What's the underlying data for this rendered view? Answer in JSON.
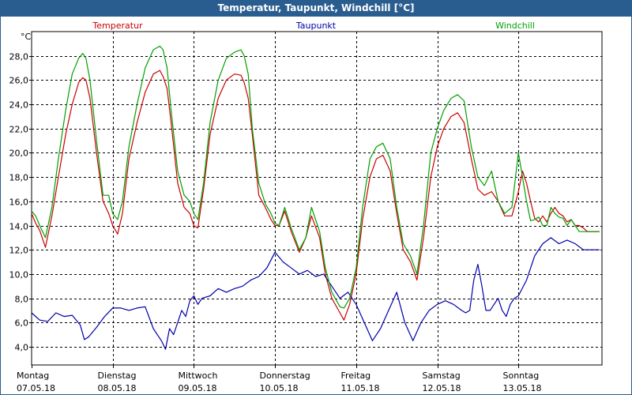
{
  "window": {
    "title": "Temperatur, Taupunkt, Windchill [°C]"
  },
  "chart_data": {
    "type": "line",
    "title": "Temperatur, Taupunkt, Windchill [°C]",
    "ylabel": "°C",
    "ylim": [
      2.5,
      30.0
    ],
    "yticks": [
      4,
      6,
      8,
      10,
      12,
      14,
      16,
      18,
      20,
      22,
      24,
      26,
      28
    ],
    "ytick_labels": [
      "4,0",
      "6,0",
      "8,0",
      "10,0",
      "12,0",
      "14,0",
      "16,0",
      "18,0",
      "20,0",
      "22,0",
      "24,0",
      "26,0",
      "28,0"
    ],
    "xlim": [
      0,
      7.03
    ],
    "grid": true,
    "days": [
      {
        "name": "Montag",
        "date": "07.05.18",
        "x": 0
      },
      {
        "name": "Dienstag",
        "date": "08.05.18",
        "x": 1
      },
      {
        "name": "Mittwoch",
        "date": "09.05.18",
        "x": 2
      },
      {
        "name": "Donnerstag",
        "date": "10.05.18",
        "x": 3
      },
      {
        "name": "Freitag",
        "date": "11.05.18",
        "x": 4
      },
      {
        "name": "Samstag",
        "date": "12.05.18",
        "x": 5
      },
      {
        "name": "Sonntag",
        "date": "13.05.18",
        "x": 6
      }
    ],
    "colors": {
      "temperatur": "#cc0000",
      "taupunkt": "#0000aa",
      "windchill": "#00a000",
      "grid": "#000000"
    },
    "series": [
      {
        "name": "Temperatur",
        "key": "temperatur",
        "x": [
          0.0,
          0.05,
          0.1,
          0.17,
          0.25,
          0.33,
          0.42,
          0.5,
          0.58,
          0.63,
          0.67,
          0.72,
          0.8,
          0.88,
          0.95,
          1.0,
          1.06,
          1.12,
          1.2,
          1.3,
          1.4,
          1.5,
          1.58,
          1.62,
          1.67,
          1.72,
          1.8,
          1.88,
          1.95,
          2.0,
          2.05,
          2.12,
          2.2,
          2.3,
          2.4,
          2.5,
          2.58,
          2.62,
          2.67,
          2.72,
          2.8,
          2.88,
          2.95,
          3.0,
          3.05,
          3.12,
          3.2,
          3.3,
          3.38,
          3.45,
          3.55,
          3.62,
          3.7,
          3.8,
          3.85,
          3.92,
          4.0,
          4.08,
          4.17,
          4.25,
          4.33,
          4.42,
          4.5,
          4.58,
          4.67,
          4.75,
          4.83,
          4.92,
          5.0,
          5.08,
          5.17,
          5.25,
          5.33,
          5.42,
          5.5,
          5.58,
          5.67,
          5.75,
          5.83,
          5.92,
          6.0,
          6.05,
          6.1,
          6.15,
          6.2,
          6.25,
          6.3,
          6.35,
          6.4,
          6.45,
          6.5,
          6.55,
          6.6,
          6.65,
          6.7,
          6.75,
          6.8,
          6.85,
          6.9,
          6.95,
          7.0
        ],
        "values": [
          15.0,
          14.2,
          13.6,
          12.2,
          14.8,
          18.0,
          21.5,
          24.0,
          25.8,
          26.2,
          26.0,
          24.5,
          20.0,
          16.0,
          15.0,
          14.0,
          13.3,
          15.0,
          19.5,
          22.5,
          25.0,
          26.5,
          26.8,
          26.3,
          25.3,
          22.5,
          17.5,
          15.5,
          15.0,
          14.0,
          13.8,
          17.0,
          21.5,
          24.5,
          26.0,
          26.5,
          26.4,
          25.8,
          24.5,
          21.5,
          16.5,
          15.5,
          14.5,
          14.0,
          14.0,
          15.2,
          13.5,
          11.8,
          13.0,
          14.8,
          13.0,
          10.0,
          8.0,
          6.8,
          6.2,
          7.5,
          10.0,
          14.5,
          18.0,
          19.5,
          19.8,
          18.5,
          15.0,
          12.0,
          11.0,
          9.5,
          13.0,
          18.0,
          20.5,
          22.0,
          23.0,
          23.3,
          22.5,
          19.5,
          17.0,
          16.5,
          16.8,
          16.0,
          14.8,
          14.8,
          16.8,
          18.5,
          17.5,
          16.0,
          14.6,
          14.3,
          14.8,
          14.3,
          15.0,
          15.5,
          15.0,
          14.8,
          14.3,
          14.5,
          14.0,
          14.0,
          13.8,
          13.5,
          13.5,
          13.5,
          13.5
        ]
      },
      {
        "name": "Taupunkt",
        "key": "taupunkt",
        "x": [
          0.0,
          0.1,
          0.2,
          0.3,
          0.4,
          0.5,
          0.6,
          0.65,
          0.7,
          0.8,
          0.9,
          1.0,
          1.1,
          1.2,
          1.3,
          1.4,
          1.5,
          1.6,
          1.65,
          1.7,
          1.75,
          1.8,
          1.85,
          1.9,
          1.95,
          2.0,
          2.05,
          2.1,
          2.2,
          2.3,
          2.4,
          2.5,
          2.6,
          2.7,
          2.8,
          2.9,
          3.0,
          3.1,
          3.2,
          3.3,
          3.4,
          3.5,
          3.6,
          3.7,
          3.8,
          3.9,
          4.0,
          4.1,
          4.2,
          4.3,
          4.4,
          4.5,
          4.6,
          4.7,
          4.8,
          4.9,
          5.0,
          5.1,
          5.2,
          5.3,
          5.35,
          5.4,
          5.45,
          5.5,
          5.55,
          5.6,
          5.65,
          5.7,
          5.75,
          5.8,
          5.85,
          5.9,
          5.95,
          6.0,
          6.1,
          6.2,
          6.3,
          6.4,
          6.5,
          6.6,
          6.7,
          6.8,
          6.9,
          7.0
        ],
        "values": [
          6.8,
          6.2,
          6.1,
          6.8,
          6.5,
          6.6,
          5.8,
          4.6,
          4.8,
          5.6,
          6.5,
          7.2,
          7.2,
          7.0,
          7.2,
          7.3,
          5.5,
          4.5,
          3.8,
          5.5,
          5.0,
          6.0,
          7.0,
          6.5,
          7.8,
          8.2,
          7.5,
          8.0,
          8.2,
          8.8,
          8.5,
          8.8,
          9.0,
          9.5,
          9.8,
          10.5,
          11.8,
          11.0,
          10.5,
          10.0,
          10.3,
          9.8,
          10.0,
          9.0,
          8.0,
          8.5,
          7.5,
          6.0,
          4.5,
          5.5,
          7.0,
          8.5,
          6.0,
          4.5,
          6.0,
          7.0,
          7.5,
          7.8,
          7.5,
          7.0,
          6.8,
          7.0,
          9.5,
          10.8,
          9.0,
          7.0,
          7.0,
          7.5,
          8.0,
          7.0,
          6.5,
          7.5,
          8.0,
          8.2,
          9.5,
          11.5,
          12.5,
          13.0,
          12.5,
          12.8,
          12.5,
          12.0,
          12.0,
          12.0
        ]
      },
      {
        "name": "Windchill",
        "key": "windchill",
        "x": [
          0.0,
          0.05,
          0.1,
          0.17,
          0.25,
          0.33,
          0.42,
          0.5,
          0.58,
          0.63,
          0.67,
          0.72,
          0.8,
          0.88,
          0.95,
          1.0,
          1.06,
          1.12,
          1.2,
          1.3,
          1.4,
          1.5,
          1.58,
          1.62,
          1.67,
          1.72,
          1.8,
          1.88,
          1.95,
          2.0,
          2.05,
          2.12,
          2.2,
          2.3,
          2.4,
          2.5,
          2.58,
          2.62,
          2.67,
          2.72,
          2.8,
          2.88,
          2.95,
          3.0,
          3.05,
          3.12,
          3.2,
          3.3,
          3.38,
          3.45,
          3.55,
          3.62,
          3.7,
          3.8,
          3.85,
          3.92,
          4.0,
          4.08,
          4.17,
          4.25,
          4.33,
          4.42,
          4.5,
          4.58,
          4.67,
          4.75,
          4.83,
          4.92,
          5.0,
          5.08,
          5.17,
          5.25,
          5.33,
          5.42,
          5.5,
          5.58,
          5.67,
          5.75,
          5.83,
          5.92,
          6.0,
          6.05,
          6.1,
          6.15,
          6.2,
          6.25,
          6.3,
          6.35,
          6.4,
          6.45,
          6.5,
          6.55,
          6.6,
          6.65,
          6.7,
          6.75,
          6.8,
          6.85,
          6.9,
          6.95,
          7.0
        ],
        "values": [
          15.2,
          14.8,
          14.0,
          13.0,
          15.5,
          19.5,
          23.5,
          26.5,
          27.8,
          28.2,
          27.8,
          26.0,
          21.0,
          16.5,
          16.5,
          15.0,
          14.5,
          16.0,
          20.5,
          24.0,
          27.0,
          28.5,
          28.8,
          28.5,
          27.0,
          23.5,
          18.5,
          16.5,
          16.0,
          15.0,
          14.5,
          17.5,
          22.5,
          26.0,
          27.8,
          28.3,
          28.5,
          28.0,
          26.5,
          22.0,
          17.5,
          15.8,
          15.0,
          14.2,
          14.0,
          15.5,
          13.8,
          12.0,
          13.0,
          15.5,
          13.5,
          10.5,
          8.5,
          7.3,
          7.2,
          8.0,
          10.5,
          15.5,
          19.5,
          20.5,
          20.8,
          19.5,
          15.5,
          12.5,
          11.5,
          10.0,
          14.0,
          20.0,
          22.0,
          23.5,
          24.5,
          24.8,
          24.3,
          20.5,
          18.0,
          17.3,
          18.5,
          16.0,
          15.0,
          15.5,
          20.0,
          18.0,
          16.0,
          14.4,
          14.5,
          14.7,
          14.0,
          14.0,
          15.5,
          15.0,
          14.7,
          14.6,
          14.0,
          14.5,
          14.0,
          13.5,
          13.5,
          13.5,
          13.5,
          13.5,
          13.5
        ]
      }
    ]
  }
}
